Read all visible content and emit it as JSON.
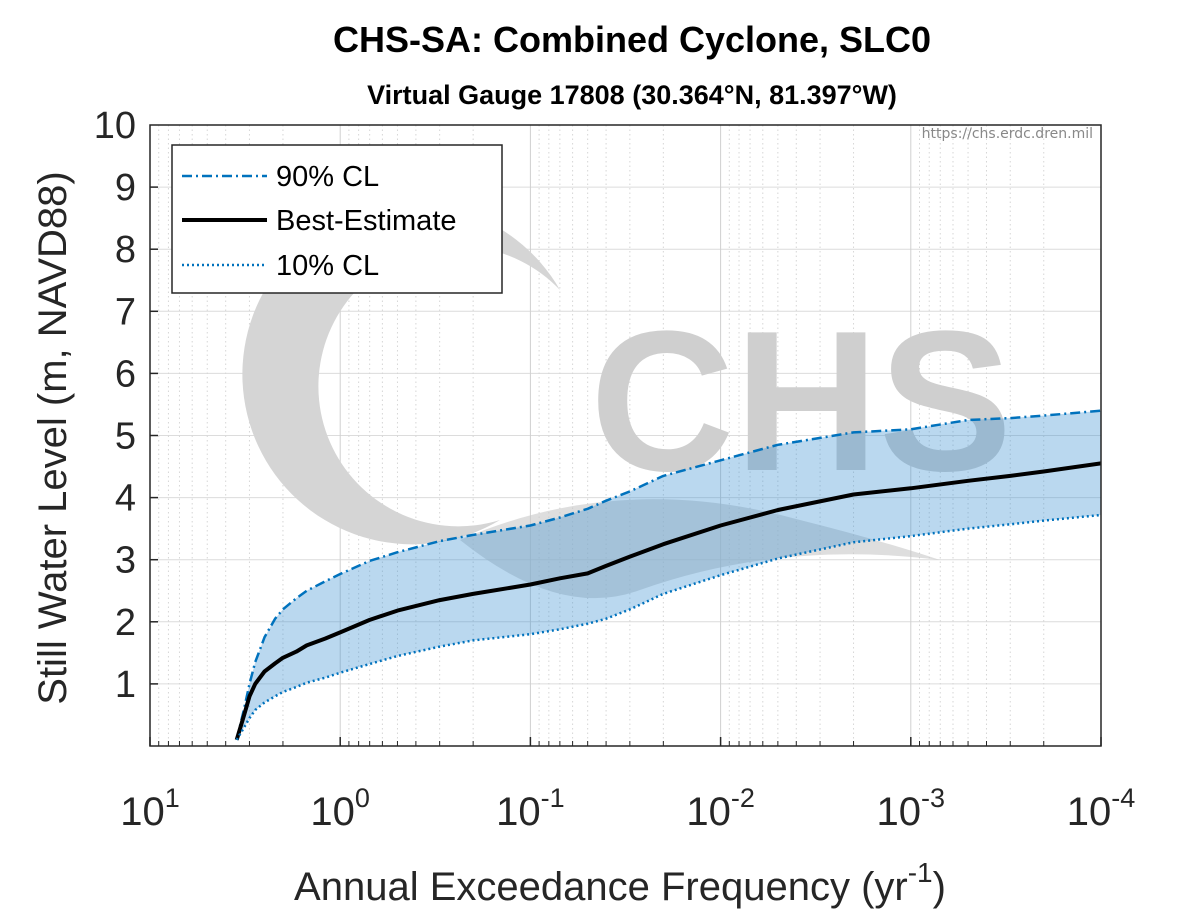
{
  "chart_data": {
    "type": "line",
    "title": "CHS-SA: Combined Cyclone, SLC0",
    "subtitle": "Virtual Gauge 17808 (30.364°N, 81.397°W)",
    "xlabel": "Annual Exceedance Frequency (yr",
    "xlabel_exponent": "-1",
    "xlabel_close": ")",
    "ylabel": "Still Water Level (m, NAVD88)",
    "x_scale": "log",
    "x_reversed": true,
    "xlim": [
      10,
      0.0001
    ],
    "ylim": [
      0,
      10
    ],
    "grid": true,
    "legend_position": "top-left",
    "watermark_text": "https://chs.erdc.dren.mil",
    "watermark_logo": "CHS",
    "x_ticks": [
      {
        "base": "10",
        "exp": "1",
        "value": 10
      },
      {
        "base": "10",
        "exp": "0",
        "value": 1
      },
      {
        "base": "10",
        "exp": "-1",
        "value": 0.1
      },
      {
        "base": "10",
        "exp": "-2",
        "value": 0.01
      },
      {
        "base": "10",
        "exp": "-3",
        "value": 0.001
      },
      {
        "base": "10",
        "exp": "-4",
        "value": 0.0001
      }
    ],
    "y_ticks": [
      "1",
      "2",
      "3",
      "4",
      "5",
      "6",
      "7",
      "8",
      "9",
      "10"
    ],
    "x": [
      3.5,
      3.2,
      3.0,
      2.8,
      2.5,
      2.2,
      2.0,
      1.7,
      1.5,
      1.2,
      1.0,
      0.7,
      0.5,
      0.3,
      0.2,
      0.1,
      0.07,
      0.05,
      0.04,
      0.03,
      0.02,
      0.01,
      0.005,
      0.002,
      0.001,
      0.0005,
      0.0003,
      0.0002,
      0.0001
    ],
    "series": [
      {
        "name": "90% CL",
        "color": "#0072bd",
        "dash": "dashdot",
        "values": [
          0.1,
          0.6,
          1.0,
          1.35,
          1.75,
          2.05,
          2.2,
          2.38,
          2.5,
          2.65,
          2.77,
          2.98,
          3.12,
          3.3,
          3.4,
          3.55,
          3.68,
          3.82,
          3.95,
          4.1,
          4.35,
          4.6,
          4.85,
          5.05,
          5.1,
          5.25,
          5.28,
          5.32,
          5.4
        ]
      },
      {
        "name": "Best-Estimate",
        "color": "#000000",
        "dash": "solid",
        "values": [
          0.1,
          0.5,
          0.8,
          1.0,
          1.2,
          1.33,
          1.42,
          1.52,
          1.62,
          1.73,
          1.83,
          2.03,
          2.18,
          2.35,
          2.45,
          2.6,
          2.7,
          2.78,
          2.9,
          3.05,
          3.25,
          3.55,
          3.8,
          4.05,
          4.15,
          4.27,
          4.35,
          4.42,
          4.55
        ]
      },
      {
        "name": "10% CL",
        "color": "#0072bd",
        "dash": "dotted",
        "values": [
          0.1,
          0.3,
          0.45,
          0.58,
          0.7,
          0.8,
          0.87,
          0.95,
          1.02,
          1.1,
          1.18,
          1.32,
          1.45,
          1.6,
          1.7,
          1.8,
          1.88,
          1.97,
          2.05,
          2.2,
          2.45,
          2.75,
          3.02,
          3.28,
          3.38,
          3.5,
          3.57,
          3.63,
          3.72
        ]
      }
    ],
    "band": {
      "between": [
        "10% CL",
        "90% CL"
      ],
      "color": "#3a8ed0",
      "opacity": 0.35
    }
  }
}
